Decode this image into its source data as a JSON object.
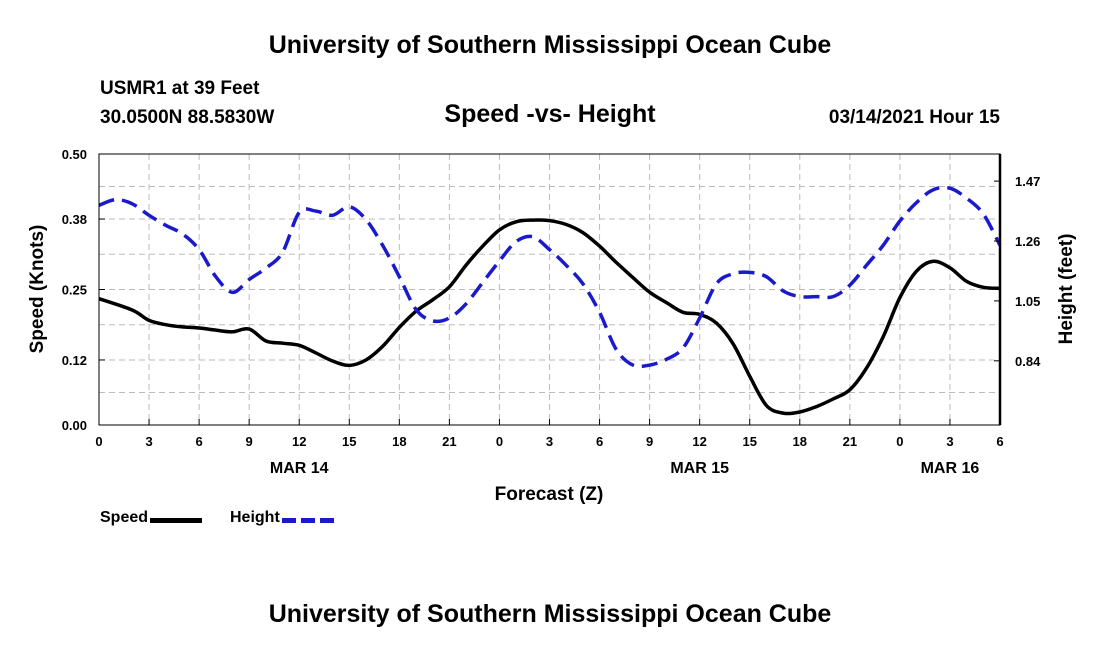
{
  "page": {
    "top_title": "University of Southern Mississippi Ocean Cube",
    "bottom_title": "University of Southern Mississippi Ocean Cube",
    "station": "USMR1 at 39 Feet",
    "coordinates": "30.0500N 88.5830W",
    "date_hour": "03/14/2021 Hour 15"
  },
  "colors": {
    "speed_line": "#000000",
    "height_line": "#1a1acc",
    "grid": "#bbbbbb"
  },
  "chart_data": {
    "type": "line",
    "title": "Speed -vs- Height",
    "xlabel": "Forecast (Z)",
    "ylabel_left": "Speed (Knots)",
    "ylabel_right": "Height (feet)",
    "grid": true,
    "legend_position": "bottom-left",
    "x_unit": "hours from 00Z MAR 14",
    "xlim": [
      0,
      54
    ],
    "ylim_left": [
      0.0,
      0.5
    ],
    "ylim_right": [
      0.615,
      1.565
    ],
    "x_ticks": [
      0,
      3,
      6,
      9,
      12,
      15,
      18,
      21,
      24,
      27,
      30,
      33,
      36,
      39,
      42,
      45,
      48,
      51,
      54
    ],
    "x_tick_labels": [
      "0",
      "3",
      "6",
      "9",
      "12",
      "15",
      "18",
      "21",
      "0",
      "3",
      "6",
      "9",
      "12",
      "15",
      "18",
      "21",
      "0",
      "3",
      "6"
    ],
    "day_labels": [
      {
        "x": 12,
        "label": "MAR 14"
      },
      {
        "x": 36,
        "label": "MAR 15"
      },
      {
        "x": 51,
        "label": "MAR 16"
      }
    ],
    "y_left_ticks": [
      0.0,
      0.12,
      0.25,
      0.38,
      0.5
    ],
    "y_left_tick_labels": [
      "0.00",
      "0.12",
      "0.25",
      "0.38",
      "0.50"
    ],
    "y_right_ticks": [
      0.84,
      1.05,
      1.26,
      1.47
    ],
    "y_right_tick_labels": [
      "0.84",
      "1.05",
      "1.26",
      "1.47"
    ],
    "series": [
      {
        "name": "Speed",
        "axis": "left",
        "style": "solid",
        "points": [
          [
            0,
            0.233
          ],
          [
            2,
            0.212
          ],
          [
            3,
            0.193
          ],
          [
            4,
            0.185
          ],
          [
            5,
            0.181
          ],
          [
            6,
            0.179
          ],
          [
            7,
            0.175
          ],
          [
            8,
            0.172
          ],
          [
            9,
            0.177
          ],
          [
            10,
            0.155
          ],
          [
            11,
            0.151
          ],
          [
            12,
            0.147
          ],
          [
            13,
            0.133
          ],
          [
            14,
            0.118
          ],
          [
            15,
            0.11
          ],
          [
            16,
            0.12
          ],
          [
            17,
            0.145
          ],
          [
            18,
            0.18
          ],
          [
            19,
            0.21
          ],
          [
            20,
            0.231
          ],
          [
            21,
            0.255
          ],
          [
            22,
            0.295
          ],
          [
            23,
            0.33
          ],
          [
            24,
            0.36
          ],
          [
            25,
            0.375
          ],
          [
            26,
            0.378
          ],
          [
            27,
            0.377
          ],
          [
            28,
            0.37
          ],
          [
            29,
            0.355
          ],
          [
            30,
            0.33
          ],
          [
            31,
            0.3
          ],
          [
            32,
            0.272
          ],
          [
            33,
            0.245
          ],
          [
            34,
            0.226
          ],
          [
            35,
            0.208
          ],
          [
            36,
            0.204
          ],
          [
            37,
            0.188
          ],
          [
            38,
            0.15
          ],
          [
            39,
            0.09
          ],
          [
            40,
            0.036
          ],
          [
            41,
            0.022
          ],
          [
            42,
            0.024
          ],
          [
            43,
            0.034
          ],
          [
            44,
            0.048
          ],
          [
            45,
            0.065
          ],
          [
            46,
            0.105
          ],
          [
            47,
            0.163
          ],
          [
            48,
            0.235
          ],
          [
            49,
            0.284
          ],
          [
            50,
            0.302
          ],
          [
            51,
            0.29
          ],
          [
            52,
            0.265
          ],
          [
            53,
            0.254
          ],
          [
            54,
            0.252
          ]
        ]
      },
      {
        "name": "Height",
        "axis": "right",
        "style": "dashed",
        "points": [
          [
            0,
            1.385
          ],
          [
            1,
            1.405
          ],
          [
            2,
            1.39
          ],
          [
            3,
            1.35
          ],
          [
            4,
            1.315
          ],
          [
            5,
            1.285
          ],
          [
            6,
            1.23
          ],
          [
            7,
            1.135
          ],
          [
            8,
            1.08
          ],
          [
            9,
            1.125
          ],
          [
            10,
            1.165
          ],
          [
            11,
            1.22
          ],
          [
            12,
            1.36
          ],
          [
            13,
            1.365
          ],
          [
            14,
            1.35
          ],
          [
            15,
            1.38
          ],
          [
            16,
            1.335
          ],
          [
            17,
            1.245
          ],
          [
            18,
            1.135
          ],
          [
            19,
            1.02
          ],
          [
            20,
            0.98
          ],
          [
            21,
            0.99
          ],
          [
            22,
            1.04
          ],
          [
            23,
            1.115
          ],
          [
            24,
            1.19
          ],
          [
            25,
            1.258
          ],
          [
            26,
            1.275
          ],
          [
            27,
            1.23
          ],
          [
            28,
            1.175
          ],
          [
            29,
            1.11
          ],
          [
            30,
            1.01
          ],
          [
            31,
            0.88
          ],
          [
            32,
            0.825
          ],
          [
            33,
            0.825
          ],
          [
            34,
            0.845
          ],
          [
            35,
            0.885
          ],
          [
            36,
            0.99
          ],
          [
            37,
            1.11
          ],
          [
            38,
            1.145
          ],
          [
            39,
            1.15
          ],
          [
            40,
            1.135
          ],
          [
            41,
            1.085
          ],
          [
            42,
            1.065
          ],
          [
            43,
            1.065
          ],
          [
            44,
            1.065
          ],
          [
            45,
            1.105
          ],
          [
            46,
            1.175
          ],
          [
            47,
            1.245
          ],
          [
            48,
            1.33
          ],
          [
            49,
            1.395
          ],
          [
            50,
            1.44
          ],
          [
            51,
            1.445
          ],
          [
            52,
            1.41
          ],
          [
            53,
            1.355
          ],
          [
            54,
            1.245
          ]
        ]
      }
    ]
  }
}
